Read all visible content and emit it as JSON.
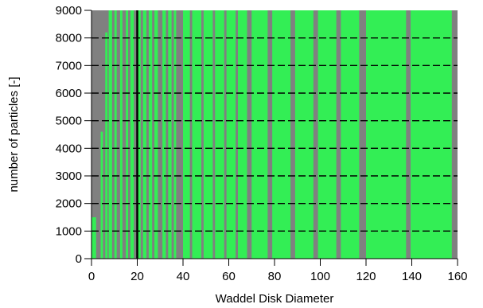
{
  "chart_data": {
    "type": "bar",
    "xlabel": "Waddel Disk Diameter",
    "ylabel": "number of particles [-]",
    "xlim": [
      0,
      160
    ],
    "ylim": [
      0,
      9000
    ],
    "x_ticks": [
      0,
      20,
      40,
      60,
      80,
      100,
      120,
      140,
      160
    ],
    "y_ticks": [
      0,
      1000,
      2000,
      3000,
      4000,
      5000,
      6000,
      7000,
      8000,
      9000
    ],
    "grid": "horizontal dashed",
    "legend": "none",
    "colors": {
      "plot_background": "#808080",
      "bars": "#33ee55",
      "grid": "#000000",
      "highlight_line": "#000000"
    },
    "highlight_x": 20,
    "bars": [
      {
        "x0": 0,
        "x1": 2,
        "value": 1500
      },
      {
        "x0": 4,
        "x1": 5,
        "value": 4600
      },
      {
        "x0": 6,
        "x1": 7,
        "value": 8200
      },
      {
        "x0": 7.5,
        "x1": 9,
        "value": 9000
      },
      {
        "x0": 10,
        "x1": 11,
        "value": 9000
      },
      {
        "x0": 12.5,
        "x1": 13.5,
        "value": 9000
      },
      {
        "x0": 15,
        "x1": 16,
        "value": 9000
      },
      {
        "x0": 17,
        "x1": 18.5,
        "value": 9000
      },
      {
        "x0": 20,
        "x1": 21.5,
        "value": 9000
      },
      {
        "x0": 22.5,
        "x1": 24,
        "value": 9000
      },
      {
        "x0": 25,
        "x1": 26.5,
        "value": 9000
      },
      {
        "x0": 27.5,
        "x1": 29,
        "value": 9000
      },
      {
        "x0": 31,
        "x1": 32.5,
        "value": 9000
      },
      {
        "x0": 33.5,
        "x1": 35,
        "value": 9000
      },
      {
        "x0": 36,
        "x1": 37,
        "value": 9000
      },
      {
        "x0": 40,
        "x1": 43,
        "value": 9000
      },
      {
        "x0": 44,
        "x1": 48,
        "value": 9000
      },
      {
        "x0": 49,
        "x1": 53,
        "value": 9000
      },
      {
        "x0": 54,
        "x1": 58,
        "value": 9000
      },
      {
        "x0": 59,
        "x1": 63,
        "value": 9000
      },
      {
        "x0": 64,
        "x1": 68,
        "value": 9000
      },
      {
        "x0": 70,
        "x1": 77,
        "value": 9000
      },
      {
        "x0": 79,
        "x1": 87,
        "value": 9000
      },
      {
        "x0": 89,
        "x1": 97,
        "value": 9000
      },
      {
        "x0": 99,
        "x1": 107,
        "value": 9000
      },
      {
        "x0": 109,
        "x1": 117,
        "value": 9000
      },
      {
        "x0": 120,
        "x1": 137.5,
        "value": 9000
      },
      {
        "x0": 139.5,
        "x1": 157.5,
        "value": 9000
      }
    ]
  }
}
